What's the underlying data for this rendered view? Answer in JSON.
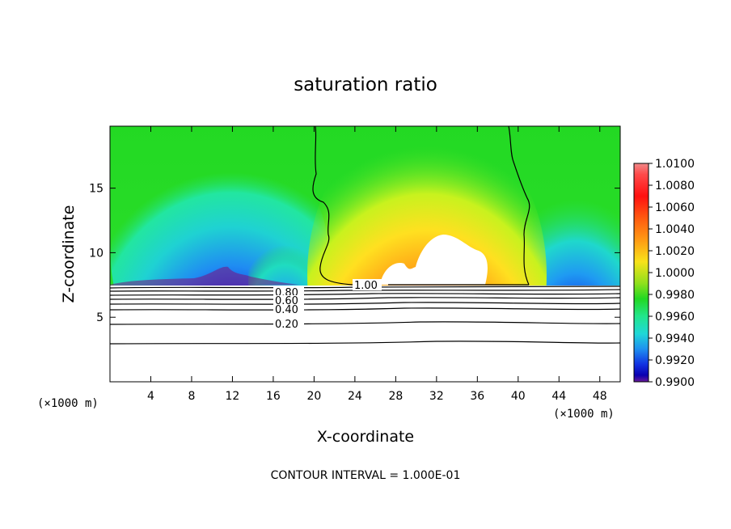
{
  "chart_data": {
    "type": "contour",
    "title": "saturation ratio",
    "xlabel": "X-coordinate",
    "ylabel": "Z-coordinate",
    "x_unit_label": "(×1000 m)",
    "x_unit_label_right": "(×1000 m)",
    "xlim": [
      0,
      50
    ],
    "ylim": [
      0,
      19.8
    ],
    "x_ticks": [
      4,
      8,
      12,
      16,
      20,
      24,
      28,
      32,
      36,
      40,
      44,
      48
    ],
    "y_ticks": [
      5,
      10,
      15
    ],
    "colorbar": {
      "min": 0.99,
      "max": 1.01,
      "ticks": [
        "1.0100",
        "1.0080",
        "1.0060",
        "1.0040",
        "1.0020",
        "1.0000",
        "0.9980",
        "0.9960",
        "0.9940",
        "0.9920",
        "0.9900"
      ]
    },
    "contour_labels": [
      "1.00",
      "0.80",
      "0.60",
      "0.40",
      "0.20"
    ],
    "contour_interval_text": "CONTOUR INTERVAL = 1.000E-01"
  }
}
